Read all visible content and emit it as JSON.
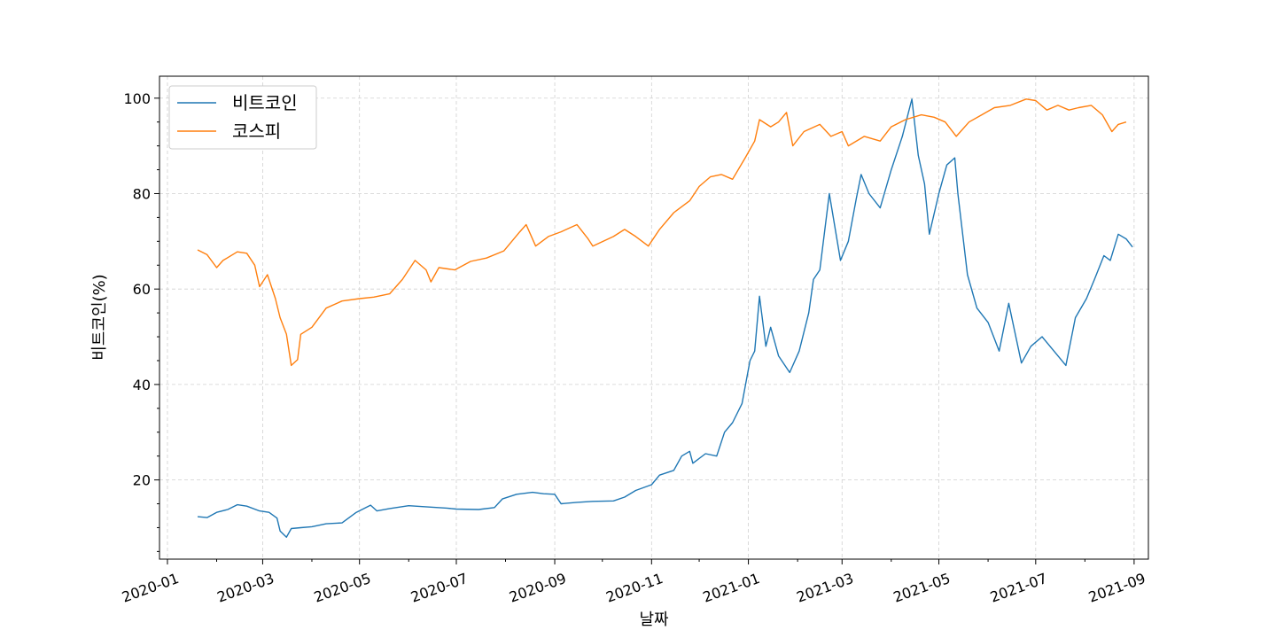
{
  "chart_data": {
    "type": "line",
    "title": "",
    "xlabel": "날짜",
    "ylabel": "비트코인(%)",
    "xlim": [
      "2019-12-27",
      "2021-09-10"
    ],
    "ylim": [
      3.4,
      104.6
    ],
    "grid": true,
    "legend_position": "upper-left",
    "x_ticks": [
      "2020-01",
      "2020-03",
      "2020-05",
      "2020-07",
      "2020-09",
      "2020-11",
      "2021-01",
      "2021-03",
      "2021-05",
      "2021-07",
      "2021-09"
    ],
    "x_tick_dates": [
      "2020-01-01",
      "2020-03-01",
      "2020-05-01",
      "2020-07-01",
      "2020-09-01",
      "2020-11-01",
      "2021-01-01",
      "2021-03-01",
      "2021-05-01",
      "2021-07-01",
      "2021-09-01"
    ],
    "y_ticks": [
      20,
      40,
      60,
      80,
      100
    ],
    "series": [
      {
        "name": "비트코인",
        "color": "#1f77b4",
        "points": [
          [
            "2020-01-20",
            12.3
          ],
          [
            "2020-01-26",
            12.1
          ],
          [
            "2020-02-01",
            13.2
          ],
          [
            "2020-02-08",
            13.8
          ],
          [
            "2020-02-14",
            14.8
          ],
          [
            "2020-02-20",
            14.5
          ],
          [
            "2020-02-28",
            13.5
          ],
          [
            "2020-03-05",
            13.2
          ],
          [
            "2020-03-10",
            12.0
          ],
          [
            "2020-03-12",
            9.3
          ],
          [
            "2020-03-16",
            8.0
          ],
          [
            "2020-03-19",
            9.8
          ],
          [
            "2020-03-25",
            10.0
          ],
          [
            "2020-04-01",
            10.2
          ],
          [
            "2020-04-10",
            10.8
          ],
          [
            "2020-04-20",
            11.0
          ],
          [
            "2020-04-29",
            13.2
          ],
          [
            "2020-05-08",
            14.7
          ],
          [
            "2020-05-12",
            13.5
          ],
          [
            "2020-05-20",
            14.0
          ],
          [
            "2020-06-01",
            14.6
          ],
          [
            "2020-06-15",
            14.3
          ],
          [
            "2020-06-25",
            14.1
          ],
          [
            "2020-07-01",
            13.9
          ],
          [
            "2020-07-15",
            13.8
          ],
          [
            "2020-07-25",
            14.2
          ],
          [
            "2020-07-30",
            16.0
          ],
          [
            "2020-08-08",
            17.0
          ],
          [
            "2020-08-18",
            17.4
          ],
          [
            "2020-08-25",
            17.1
          ],
          [
            "2020-09-01",
            17.0
          ],
          [
            "2020-09-05",
            15.0
          ],
          [
            "2020-09-15",
            15.3
          ],
          [
            "2020-09-25",
            15.5
          ],
          [
            "2020-10-08",
            15.6
          ],
          [
            "2020-10-15",
            16.4
          ],
          [
            "2020-10-22",
            17.8
          ],
          [
            "2020-11-01",
            19.0
          ],
          [
            "2020-11-06",
            21.0
          ],
          [
            "2020-11-15",
            22.0
          ],
          [
            "2020-11-20",
            25.0
          ],
          [
            "2020-11-25",
            26.0
          ],
          [
            "2020-11-27",
            23.5
          ],
          [
            "2020-12-05",
            25.5
          ],
          [
            "2020-12-12",
            25.0
          ],
          [
            "2020-12-17",
            30.0
          ],
          [
            "2020-12-22",
            32.0
          ],
          [
            "2020-12-28",
            36.0
          ],
          [
            "2021-01-02",
            45.0
          ],
          [
            "2021-01-05",
            47.0
          ],
          [
            "2021-01-08",
            58.5
          ],
          [
            "2021-01-12",
            48.0
          ],
          [
            "2021-01-15",
            52.0
          ],
          [
            "2021-01-20",
            46.0
          ],
          [
            "2021-01-27",
            42.5
          ],
          [
            "2021-02-02",
            47.0
          ],
          [
            "2021-02-08",
            55.0
          ],
          [
            "2021-02-11",
            62.0
          ],
          [
            "2021-02-15",
            64.0
          ],
          [
            "2021-02-21",
            80.0
          ],
          [
            "2021-02-28",
            66.0
          ],
          [
            "2021-03-05",
            70.0
          ],
          [
            "2021-03-10",
            79.0
          ],
          [
            "2021-03-13",
            84.0
          ],
          [
            "2021-03-18",
            80.0
          ],
          [
            "2021-03-25",
            77.0
          ],
          [
            "2021-04-01",
            85.0
          ],
          [
            "2021-04-08",
            92.0
          ],
          [
            "2021-04-14",
            99.8
          ],
          [
            "2021-04-18",
            88.0
          ],
          [
            "2021-04-22",
            82.0
          ],
          [
            "2021-04-25",
            71.5
          ],
          [
            "2021-05-01",
            80.0
          ],
          [
            "2021-05-06",
            86.0
          ],
          [
            "2021-05-11",
            87.5
          ],
          [
            "2021-05-13",
            80.0
          ],
          [
            "2021-05-19",
            63.0
          ],
          [
            "2021-05-25",
            56.0
          ],
          [
            "2021-06-01",
            53.0
          ],
          [
            "2021-06-08",
            47.0
          ],
          [
            "2021-06-14",
            57.0
          ],
          [
            "2021-06-22",
            44.5
          ],
          [
            "2021-06-28",
            48.0
          ],
          [
            "2021-07-05",
            50.0
          ],
          [
            "2021-07-15",
            46.0
          ],
          [
            "2021-07-20",
            44.0
          ],
          [
            "2021-07-26",
            54.0
          ],
          [
            "2021-08-02",
            58.0
          ],
          [
            "2021-08-07",
            62.0
          ],
          [
            "2021-08-13",
            67.0
          ],
          [
            "2021-08-17",
            66.0
          ],
          [
            "2021-08-22",
            71.5
          ],
          [
            "2021-08-27",
            70.5
          ],
          [
            "2021-08-31",
            68.8
          ]
        ]
      },
      {
        "name": "코스피",
        "color": "#ff7f0e",
        "points": [
          [
            "2020-01-20",
            68.2
          ],
          [
            "2020-01-26",
            67.2
          ],
          [
            "2020-02-01",
            64.5
          ],
          [
            "2020-02-05",
            66.0
          ],
          [
            "2020-02-14",
            67.8
          ],
          [
            "2020-02-20",
            67.5
          ],
          [
            "2020-02-25",
            65.0
          ],
          [
            "2020-02-28",
            60.5
          ],
          [
            "2020-03-04",
            63.0
          ],
          [
            "2020-03-09",
            58.0
          ],
          [
            "2020-03-12",
            54.0
          ],
          [
            "2020-03-16",
            50.5
          ],
          [
            "2020-03-19",
            44.0
          ],
          [
            "2020-03-23",
            45.2
          ],
          [
            "2020-03-25",
            50.5
          ],
          [
            "2020-04-01",
            52.0
          ],
          [
            "2020-04-10",
            56.0
          ],
          [
            "2020-04-20",
            57.5
          ],
          [
            "2020-05-01",
            58.0
          ],
          [
            "2020-05-10",
            58.3
          ],
          [
            "2020-05-20",
            59.0
          ],
          [
            "2020-05-28",
            62.0
          ],
          [
            "2020-06-05",
            66.0
          ],
          [
            "2020-06-12",
            64.0
          ],
          [
            "2020-06-15",
            61.5
          ],
          [
            "2020-06-20",
            64.5
          ],
          [
            "2020-06-30",
            64.0
          ],
          [
            "2020-07-10",
            65.8
          ],
          [
            "2020-07-20",
            66.5
          ],
          [
            "2020-07-31",
            68.0
          ],
          [
            "2020-08-10",
            72.0
          ],
          [
            "2020-08-14",
            73.5
          ],
          [
            "2020-08-20",
            69.0
          ],
          [
            "2020-08-28",
            71.0
          ],
          [
            "2020-09-05",
            72.0
          ],
          [
            "2020-09-15",
            73.5
          ],
          [
            "2020-09-22",
            70.5
          ],
          [
            "2020-09-25",
            69.0
          ],
          [
            "2020-10-08",
            71.0
          ],
          [
            "2020-10-15",
            72.5
          ],
          [
            "2020-10-22",
            71.0
          ],
          [
            "2020-10-30",
            69.0
          ],
          [
            "2020-11-06",
            72.5
          ],
          [
            "2020-11-15",
            76.0
          ],
          [
            "2020-11-25",
            78.5
          ],
          [
            "2020-12-01",
            81.5
          ],
          [
            "2020-12-08",
            83.5
          ],
          [
            "2020-12-15",
            84.0
          ],
          [
            "2020-12-22",
            83.0
          ],
          [
            "2020-12-30",
            87.5
          ],
          [
            "2021-01-05",
            91.0
          ],
          [
            "2021-01-08",
            95.5
          ],
          [
            "2021-01-15",
            94.0
          ],
          [
            "2021-01-20",
            95.0
          ],
          [
            "2021-01-25",
            97.0
          ],
          [
            "2021-01-29",
            90.0
          ],
          [
            "2021-02-05",
            93.0
          ],
          [
            "2021-02-15",
            94.5
          ],
          [
            "2021-02-22",
            92.0
          ],
          [
            "2021-03-01",
            93.0
          ],
          [
            "2021-03-05",
            90.0
          ],
          [
            "2021-03-15",
            92.0
          ],
          [
            "2021-03-25",
            91.0
          ],
          [
            "2021-04-01",
            94.0
          ],
          [
            "2021-04-10",
            95.5
          ],
          [
            "2021-04-20",
            96.5
          ],
          [
            "2021-04-28",
            96.0
          ],
          [
            "2021-05-05",
            95.0
          ],
          [
            "2021-05-12",
            92.0
          ],
          [
            "2021-05-20",
            95.0
          ],
          [
            "2021-05-28",
            96.5
          ],
          [
            "2021-06-05",
            98.0
          ],
          [
            "2021-06-15",
            98.5
          ],
          [
            "2021-06-25",
            99.8
          ],
          [
            "2021-07-01",
            99.5
          ],
          [
            "2021-07-08",
            97.5
          ],
          [
            "2021-07-15",
            98.5
          ],
          [
            "2021-07-22",
            97.5
          ],
          [
            "2021-07-28",
            98.0
          ],
          [
            "2021-08-05",
            98.5
          ],
          [
            "2021-08-12",
            96.5
          ],
          [
            "2021-08-18",
            93.0
          ],
          [
            "2021-08-22",
            94.5
          ],
          [
            "2021-08-27",
            95.0
          ]
        ]
      }
    ]
  }
}
